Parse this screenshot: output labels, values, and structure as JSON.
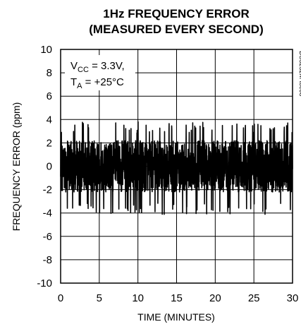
{
  "chart_data": {
    "type": "line",
    "title": [
      "1Hz FREQUENCY ERROR",
      "(MEASURED EVERY SECOND)"
    ],
    "xlabel": "TIME (MINUTES)",
    "ylabel": "FREQUENCY ERROR (ppm)",
    "xlim": [
      0,
      30
    ],
    "ylim": [
      -10,
      10
    ],
    "x_ticks": [
      0,
      5,
      10,
      15,
      20,
      25,
      30
    ],
    "y_ticks": [
      10,
      8,
      6,
      4,
      2,
      0,
      -2,
      -4,
      -6,
      -8,
      -10
    ],
    "grid": true,
    "annotation": {
      "line1": {
        "main": "V",
        "sub": "CC",
        "rest": " = 3.3V,"
      },
      "line2": {
        "main": "T",
        "sub": "A",
        "rest": " = +25°C"
      }
    },
    "figure_id": "DS3232M toc08",
    "series": [
      {
        "values_description": "dense noise, approx ±2 ppm with spikes to about ±4 ppm",
        "typical_range": [
          -2.2,
          2.2
        ],
        "peak_range": [
          -4.2,
          3.8
        ],
        "sample_interval_minutes": 0.0167
      }
    ]
  }
}
